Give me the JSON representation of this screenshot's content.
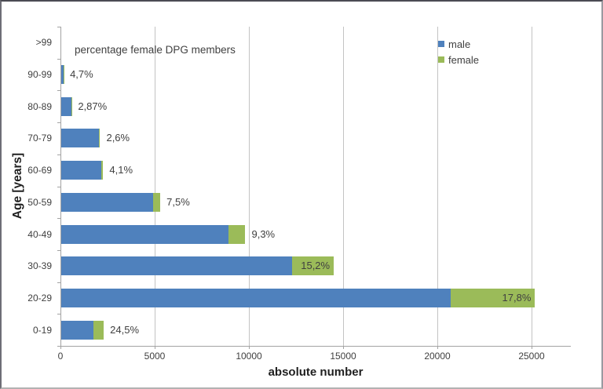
{
  "chart_data": {
    "type": "bar",
    "orientation": "horizontal",
    "stacked": true,
    "annotation": "percentage female DPG members",
    "xlabel": "absolute number",
    "ylabel": "Age [years]",
    "categories": [
      ">99",
      "90-99",
      "80-89",
      "70-79",
      "60-69",
      "50-59",
      "40-49",
      "30-39",
      "20-29",
      "0-19"
    ],
    "series": [
      {
        "name": "male",
        "color": "#4F81BD",
        "values": [
          60,
          162,
          580,
          2050,
          2175,
          4900,
          8900,
          12300,
          20700,
          1735
        ]
      },
      {
        "name": "female",
        "color": "#9BBB59",
        "values": [
          0,
          8,
          17,
          53,
          93,
          397,
          912,
          2205,
          4483,
          563
        ]
      }
    ],
    "pct_labels": [
      "",
      "4,7%",
      "2,87%",
      "2,6%",
      "4,1%",
      "7,5%",
      "9,3%",
      "15,2%",
      "17,8%",
      "24,5%"
    ],
    "pct_label_inside": [
      false,
      false,
      false,
      false,
      false,
      false,
      false,
      true,
      true,
      false
    ],
    "x_ticks": [
      0,
      5000,
      10000,
      15000,
      20000,
      25000
    ],
    "x_tick_labels": [
      "0",
      "5000",
      "10000",
      "15000",
      "20000",
      "25000"
    ],
    "xlim": [
      0,
      27100
    ],
    "grid": true,
    "legend_position": "top-right",
    "legend": [
      "male",
      "female"
    ]
  },
  "colors": {
    "male": "#4F81BD",
    "female": "#9BBB59",
    "gridline": "#C3C3C3",
    "axis_line": "#A3A3A3",
    "text": "#404040",
    "title_text": "#1F1F1F"
  }
}
